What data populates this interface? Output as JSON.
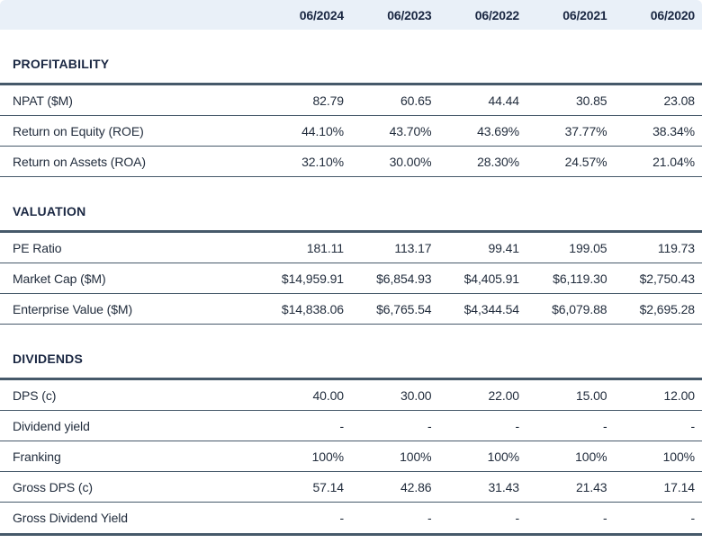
{
  "table": {
    "columns": [
      "06/2024",
      "06/2023",
      "06/2022",
      "06/2021",
      "06/2020"
    ],
    "sections": [
      {
        "title": "PROFITABILITY",
        "rows": [
          {
            "label": "NPAT ($M)",
            "values": [
              "82.79",
              "60.65",
              "44.44",
              "30.85",
              "23.08"
            ]
          },
          {
            "label": "Return on Equity (ROE)",
            "values": [
              "44.10%",
              "43.70%",
              "43.69%",
              "37.77%",
              "38.34%"
            ]
          },
          {
            "label": "Return on Assets (ROA)",
            "values": [
              "32.10%",
              "30.00%",
              "28.30%",
              "24.57%",
              "21.04%"
            ]
          }
        ]
      },
      {
        "title": "VALUATION",
        "rows": [
          {
            "label": "PE Ratio",
            "values": [
              "181.11",
              "113.17",
              "99.41",
              "199.05",
              "119.73"
            ]
          },
          {
            "label": "Market Cap ($M)",
            "values": [
              "$14,959.91",
              "$6,854.93",
              "$4,405.91",
              "$6,119.30",
              "$2,750.43"
            ]
          },
          {
            "label": "Enterprise Value ($M)",
            "values": [
              "$14,838.06",
              "$6,765.54",
              "$4,344.54",
              "$6,079.88",
              "$2,695.28"
            ]
          }
        ]
      },
      {
        "title": "DIVIDENDS",
        "rows": [
          {
            "label": "DPS (c)",
            "values": [
              "40.00",
              "30.00",
              "22.00",
              "15.00",
              "12.00"
            ]
          },
          {
            "label": "Dividend yield",
            "values": [
              "-",
              "-",
              "-",
              "-",
              "-"
            ]
          },
          {
            "label": "Franking",
            "values": [
              "100%",
              "100%",
              "100%",
              "100%",
              "100%"
            ]
          },
          {
            "label": "Gross DPS (c)",
            "values": [
              "57.14",
              "42.86",
              "31.43",
              "21.43",
              "17.14"
            ]
          },
          {
            "label": "Gross Dividend Yield",
            "values": [
              "-",
              "-",
              "-",
              "-",
              "-"
            ]
          }
        ]
      }
    ]
  },
  "colors": {
    "header_background": "#e9f0f8",
    "heading_text": "#1a2742",
    "body_text": "#222d3d",
    "border": "#46596a"
  }
}
